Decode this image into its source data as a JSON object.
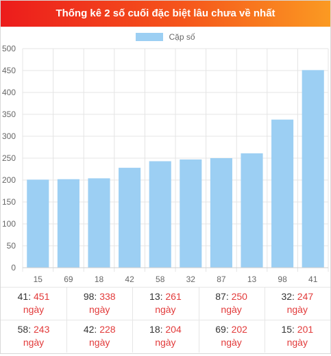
{
  "header": {
    "title": "Thống kê 2 số cuối đặc biệt lâu chưa về nhất"
  },
  "colors": {
    "bar": "#9ccff3",
    "accent": "#e23a3a"
  },
  "chart_data": {
    "type": "bar",
    "title": "Thống kê 2 số cuối đặc biệt lâu chưa về nhất",
    "categories": [
      "15",
      "69",
      "18",
      "42",
      "58",
      "32",
      "87",
      "13",
      "98",
      "41"
    ],
    "series": [
      {
        "name": "Cặp số",
        "values": [
          201,
          202,
          204,
          228,
          243,
          247,
          250,
          261,
          338,
          451
        ]
      }
    ],
    "ylim": [
      0,
      500
    ],
    "yticks": [
      "0",
      "50",
      "100",
      "150",
      "200",
      "250",
      "300",
      "350",
      "400",
      "450",
      "500"
    ],
    "grid": true,
    "legend": "top-center"
  },
  "table": [
    {
      "pair": "41",
      "days": "451",
      "unit": "ngày"
    },
    {
      "pair": "98",
      "days": "338",
      "unit": "ngày"
    },
    {
      "pair": "13",
      "days": "261",
      "unit": "ngày"
    },
    {
      "pair": "87",
      "days": "250",
      "unit": "ngày"
    },
    {
      "pair": "32",
      "days": "247",
      "unit": "ngày"
    },
    {
      "pair": "58",
      "days": "243",
      "unit": "ngày"
    },
    {
      "pair": "42",
      "days": "228",
      "unit": "ngày"
    },
    {
      "pair": "18",
      "days": "204",
      "unit": "ngày"
    },
    {
      "pair": "69",
      "days": "202",
      "unit": "ngày"
    },
    {
      "pair": "15",
      "days": "201",
      "unit": "ngày"
    }
  ]
}
